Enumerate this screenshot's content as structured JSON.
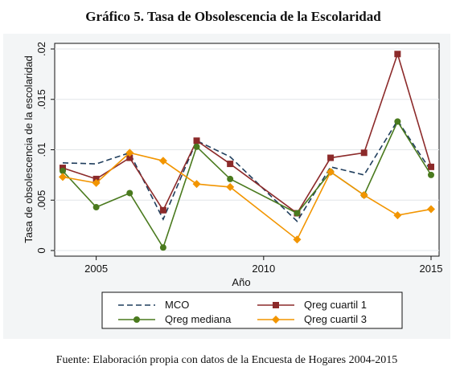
{
  "chart_data": {
    "type": "line",
    "title": "Gráfico 5. Tasa de Obsolescencia de la Escolaridad",
    "source": "Fuente: Elaboración propia con datos de la Encuesta de Hogares 2004-2015",
    "xlabel": "Año",
    "ylabel": "Tasa de obsolescencia de la escolaridad",
    "xlim": [
      2004,
      2015
    ],
    "ylim": [
      0,
      0.02
    ],
    "x_ticks": [
      2005,
      2010,
      2015
    ],
    "x_tick_labels": [
      "2005",
      "2010",
      "2015"
    ],
    "y_ticks": [
      0,
      0.005,
      0.01,
      0.015,
      0.02
    ],
    "y_tick_labels": [
      "0",
      ".005",
      ".01",
      ".015",
      ".02"
    ],
    "grid": true,
    "legend_position": "bottom",
    "x": [
      2004,
      2005,
      2006,
      2007,
      2008,
      2009,
      2010,
      2011,
      2012,
      2013,
      2014,
      2015
    ],
    "series": [
      {
        "name": "MCO",
        "style": "dashed",
        "marker": "none",
        "color": "#1f3d5c",
        "values": [
          0.0087,
          0.0086,
          0.0097,
          0.0031,
          0.0109,
          0.0093,
          null,
          0.0029,
          0.0083,
          0.0075,
          0.0129,
          0.0079
        ]
      },
      {
        "name": "Qreg cuartil 1",
        "style": "solid",
        "marker": "square",
        "color": "#8c2a2a",
        "values": [
          0.0082,
          0.0071,
          0.0092,
          0.004,
          0.0109,
          0.0086,
          null,
          0.0037,
          0.0092,
          0.0097,
          0.0195,
          0.0083
        ]
      },
      {
        "name": "Qreg mediana",
        "style": "solid",
        "marker": "circle",
        "color": "#4a7a1e",
        "values": [
          0.0079,
          0.0043,
          0.0057,
          0.0003,
          0.0103,
          0.0071,
          null,
          0.0037,
          0.0078,
          0.0055,
          0.0128,
          0.0075
        ]
      },
      {
        "name": "Qreg cuartil 3",
        "style": "solid",
        "marker": "diamond",
        "color": "#f29500",
        "values": [
          0.0073,
          0.0067,
          0.0097,
          0.0089,
          0.0066,
          0.0063,
          null,
          0.0011,
          0.0078,
          0.0055,
          0.0035,
          0.0041
        ]
      }
    ]
  }
}
